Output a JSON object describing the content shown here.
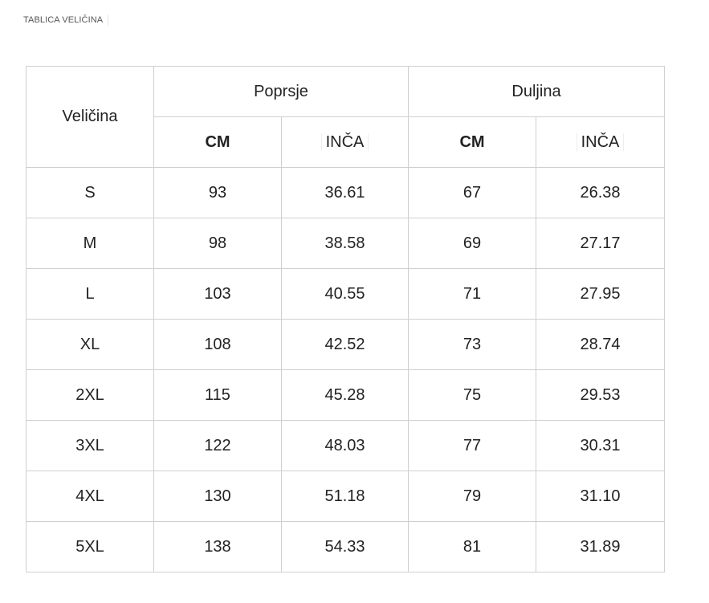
{
  "title": "TABLICA VELIČINA",
  "headers": {
    "size": "Veličina",
    "bust": "Poprsje",
    "length": "Duljina",
    "bust_cm": "CM",
    "bust_inch": "INČA",
    "length_cm": "CM",
    "length_inch": "INČA"
  },
  "rows": [
    {
      "size": "S",
      "bust_cm": "93",
      "bust_inch": "36.61",
      "length_cm": "67",
      "length_inch": "26.38"
    },
    {
      "size": "M",
      "bust_cm": "98",
      "bust_inch": "38.58",
      "length_cm": "69",
      "length_inch": "27.17"
    },
    {
      "size": "L",
      "bust_cm": "103",
      "bust_inch": "40.55",
      "length_cm": "71",
      "length_inch": "27.95"
    },
    {
      "size": "XL",
      "bust_cm": "108",
      "bust_inch": "42.52",
      "length_cm": "73",
      "length_inch": "28.74"
    },
    {
      "size": "2XL",
      "bust_cm": "115",
      "bust_inch": "45.28",
      "length_cm": "75",
      "length_inch": "29.53"
    },
    {
      "size": "3XL",
      "bust_cm": "122",
      "bust_inch": "48.03",
      "length_cm": "77",
      "length_inch": "30.31"
    },
    {
      "size": "4XL",
      "bust_cm": "130",
      "bust_inch": "51.18",
      "length_cm": "79",
      "length_inch": "31.10"
    },
    {
      "size": "5XL",
      "bust_cm": "138",
      "bust_inch": "54.33",
      "length_cm": "81",
      "length_inch": "31.89"
    }
  ]
}
